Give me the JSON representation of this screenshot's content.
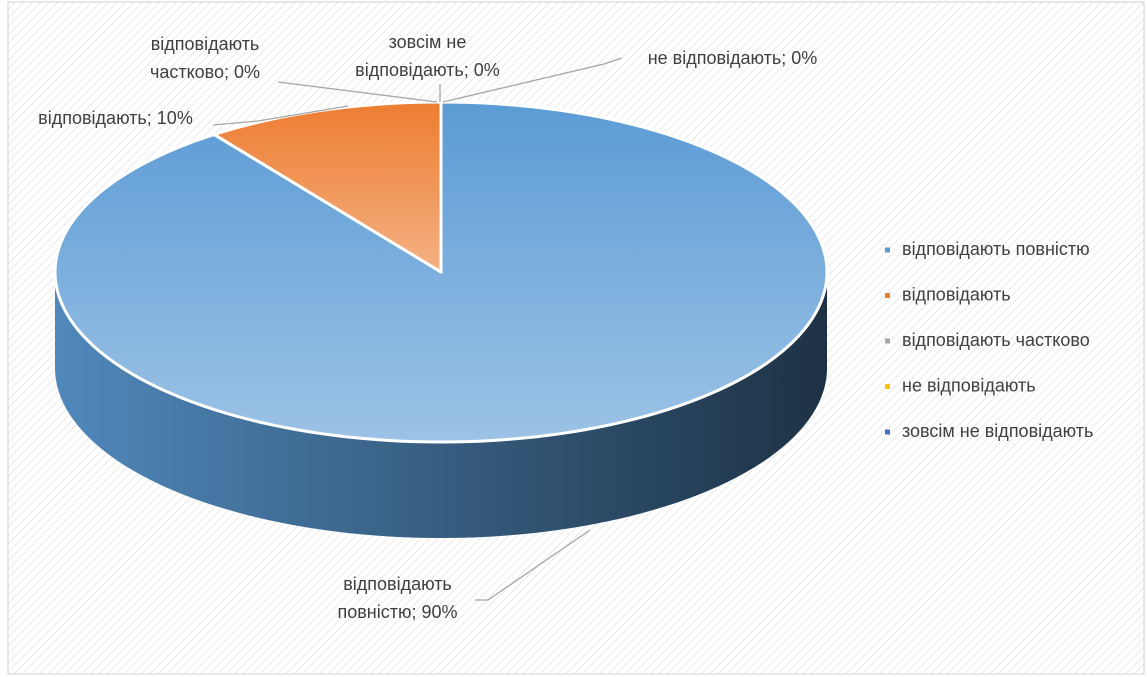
{
  "chart_data": {
    "type": "pie",
    "three_d": true,
    "categories": [
      "відповідають повністю",
      "відповідають",
      "відповідають частково",
      "не відповідають",
      "зовсім не відповідають"
    ],
    "values": [
      90,
      10,
      0,
      0,
      0
    ],
    "value_labels": [
      "відповідають повністю; 90%",
      "відповідають; 10%",
      "відповідають частково; 0%",
      "не відповідають; 0%",
      "зовсім не відповідають; 0%"
    ],
    "colors": [
      "#5b9bd5",
      "#ed7d31",
      "#a5a5a5",
      "#ffc000",
      "#4472c4"
    ],
    "legend": "right"
  }
}
